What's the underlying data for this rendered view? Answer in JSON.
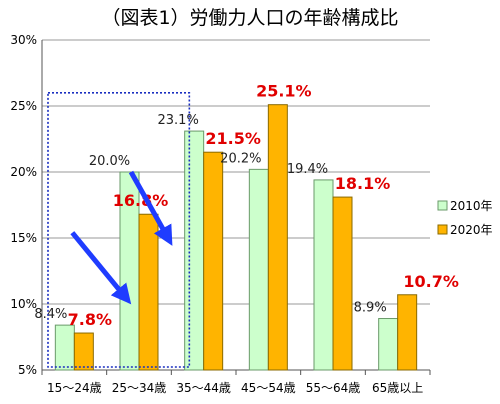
{
  "chart_data": {
    "type": "bar",
    "title": "（図表1）労働力人口の年齢構成比",
    "categories": [
      "15～24歳",
      "25～34歳",
      "35～44歳",
      "45～54歳",
      "55～64歳",
      "65歳以上"
    ],
    "series": [
      {
        "name": "2010年",
        "values": [
          8.4,
          20.0,
          23.1,
          20.2,
          19.4,
          8.9
        ],
        "labels": [
          "8.4%",
          "20.0%",
          "23.1%",
          "20.2%",
          "19.4%",
          "8.9%"
        ],
        "color": "#ccffcc",
        "stroke": "#6a9a6a"
      },
      {
        "name": "2020年",
        "values": [
          7.8,
          16.8,
          21.5,
          25.1,
          18.1,
          10.7
        ],
        "labels": [
          "7.8%",
          "16.8%",
          "21.5%",
          "25.1%",
          "18.1%",
          "10.7%"
        ],
        "color": "#ffb400",
        "stroke": "#8a6a00"
      }
    ],
    "yticks": [
      "5%",
      "10%",
      "15%",
      "20%",
      "25%",
      "30%"
    ],
    "ytick_values": [
      5,
      10,
      15,
      20,
      25,
      30
    ],
    "ylim": [
      5,
      30
    ],
    "grid": true,
    "legend_position": "right",
    "highlight_categories": [
      "15～24歳",
      "25～34歳"
    ],
    "arrow_color": "#1f3cff",
    "label_color_2020": "#e00000"
  }
}
